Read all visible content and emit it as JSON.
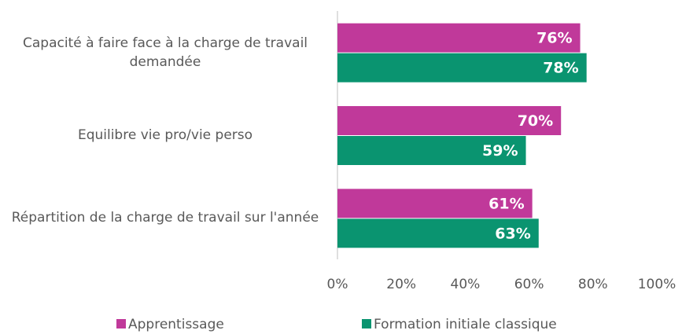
{
  "chart_data": {
    "type": "bar",
    "orientation": "horizontal",
    "categories": [
      "Capacité à faire face à la charge de travail demandée",
      "Equilibre vie pro/vie perso",
      "Répartition de la charge de travail sur l'année"
    ],
    "series": [
      {
        "name": "Apprentissage",
        "color": "#c0399a",
        "values": [
          76,
          70,
          61
        ],
        "value_labels": [
          "76%",
          "70%",
          "61%"
        ]
      },
      {
        "name": "Formation initiale classique",
        "color": "#0a9470",
        "values": [
          78,
          59,
          63
        ],
        "value_labels": [
          "78%",
          "59%",
          "63%"
        ]
      }
    ],
    "xlim": [
      0,
      100
    ],
    "xticks": [
      {
        "value": 0,
        "label": "0%"
      },
      {
        "value": 20,
        "label": "20%"
      },
      {
        "value": 40,
        "label": "40%"
      },
      {
        "value": 60,
        "label": "60%"
      },
      {
        "value": 80,
        "label": "80%"
      },
      {
        "value": 100,
        "label": "100%"
      }
    ],
    "grid": false,
    "legend": "bottom"
  }
}
